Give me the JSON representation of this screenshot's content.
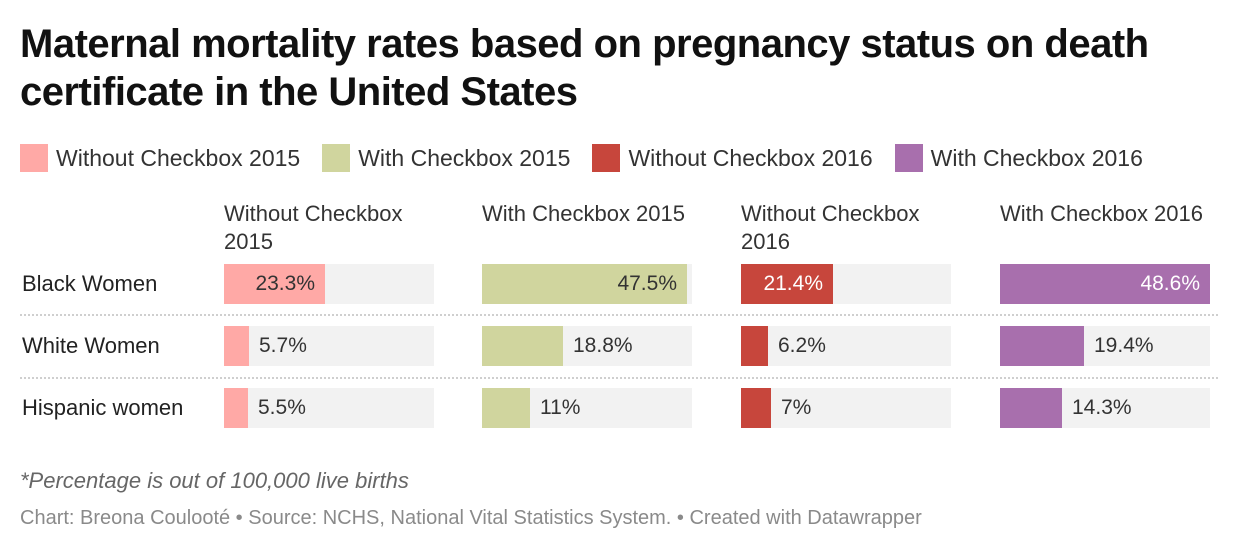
{
  "chart_data": {
    "type": "bar",
    "title": "Maternal mortality rates based on pregnancy status on death certificate in the United States",
    "categories": [
      "Black Women",
      "White Women",
      "Hispanic women"
    ],
    "series": [
      {
        "name": "Without Checkbox 2015",
        "color": "#ffa9a6",
        "values": [
          23.3,
          5.7,
          5.5
        ],
        "labels": [
          "23.3%",
          "5.7%",
          "5.5%"
        ]
      },
      {
        "name": "With Checkbox 2015",
        "color": "#d0d59e",
        "values": [
          47.5,
          18.8,
          11
        ],
        "labels": [
          "47.5%",
          "18.8%",
          "11%"
        ]
      },
      {
        "name": "Without Checkbox 2016",
        "color": "#c7463c",
        "values": [
          21.4,
          6.2,
          7
        ],
        "labels": [
          "21.4%",
          "6.2%",
          "7%"
        ]
      },
      {
        "name": "With Checkbox 2016",
        "color": "#a86fad",
        "values": [
          48.6,
          19.4,
          14.3
        ],
        "labels": [
          "48.6%",
          "19.4%",
          "14.3%"
        ]
      }
    ],
    "xlim": [
      0,
      48.6
    ],
    "legend_position": "top",
    "note": "*Percentage is out of 100,000 live births",
    "source": "Chart: Breona Coulooté • Source: NCHS, National Vital Statistics System. • Created with Datawrapper"
  }
}
